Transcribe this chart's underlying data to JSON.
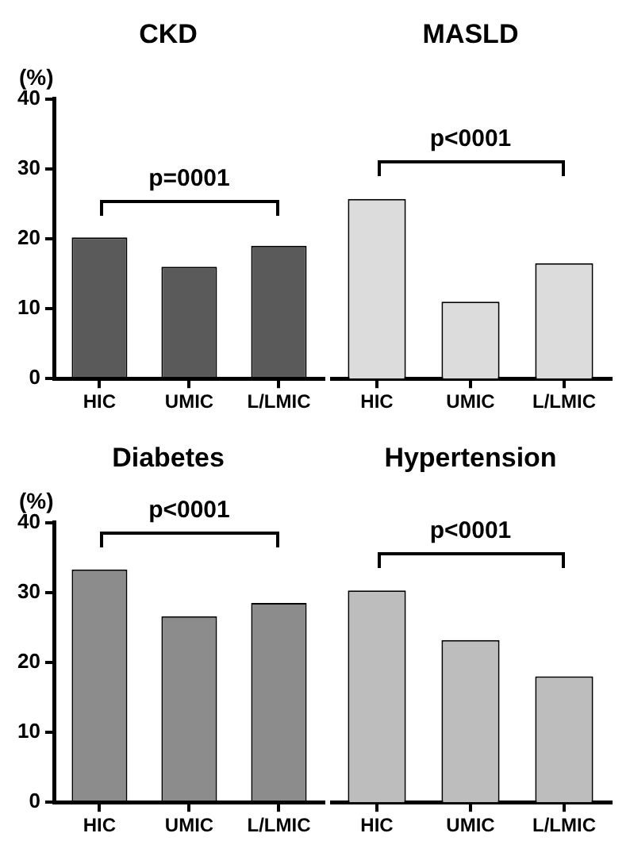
{
  "chart_data": [
    {
      "type": "bar",
      "title": "CKD",
      "ylabel": "(%)",
      "categories": [
        "HIC",
        "UMIC",
        "L/LMIC"
      ],
      "values": [
        20.2,
        16.0,
        19.0
      ],
      "color": "#5a5a5a",
      "ylim": [
        0,
        40
      ],
      "yticks": [
        0,
        10,
        20,
        30,
        40
      ],
      "grid": false,
      "annotations": [
        "p=0001"
      ]
    },
    {
      "type": "bar",
      "title": "MASLD",
      "categories": [
        "HIC",
        "UMIC",
        "L/LMIC"
      ],
      "values": [
        25.7,
        11.0,
        16.5
      ],
      "color": "#dcdcdc",
      "ylim": [
        0,
        40
      ],
      "grid": false,
      "tick_labels": "x",
      "annotations": [
        "p<0001"
      ]
    },
    {
      "type": "bar",
      "title": "Diabetes",
      "ylabel": "(%)",
      "categories": [
        "HIC",
        "UMIC",
        "L/LMIC"
      ],
      "values": [
        33.3,
        26.6,
        28.5
      ],
      "color": "#8c8c8c",
      "ylim": [
        0,
        40
      ],
      "yticks": [
        0,
        10,
        20,
        30,
        40
      ],
      "grid": false,
      "annotations": [
        "p<0001"
      ]
    },
    {
      "type": "bar",
      "title": "Hypertension",
      "categories": [
        "HIC",
        "UMIC",
        "L/LMIC"
      ],
      "values": [
        30.3,
        23.2,
        18.0
      ],
      "color": "#bdbdbd",
      "ylim": [
        0,
        40
      ],
      "grid": false,
      "tick_labels": "x",
      "annotations": [
        "p<0001"
      ]
    }
  ]
}
